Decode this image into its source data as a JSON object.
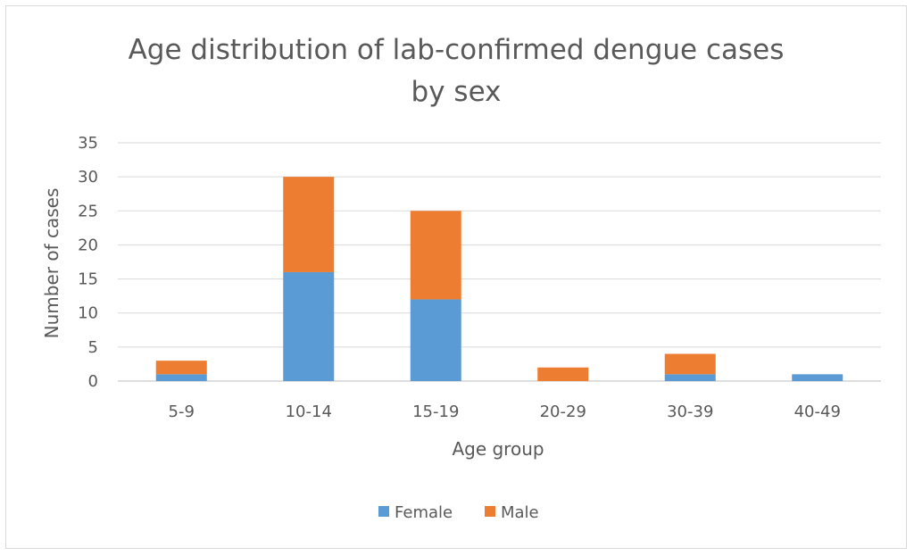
{
  "chart_data": {
    "type": "bar",
    "stacked": true,
    "title_lines": [
      "Age distribution of lab-confirmed dengue cases",
      "by sex"
    ],
    "xlabel": "Age group",
    "ylabel": "Number of cases",
    "categories": [
      "5-9",
      "10-14",
      "15-19",
      "20-29",
      "30-39",
      "40-49"
    ],
    "series": [
      {
        "name": "Female",
        "color": "#5b9bd5",
        "values": [
          1,
          16,
          12,
          0,
          1,
          1
        ]
      },
      {
        "name": "Male",
        "color": "#ed7d31",
        "values": [
          2,
          14,
          13,
          2,
          3,
          0
        ]
      }
    ],
    "ylim": [
      0,
      35
    ],
    "yticks": [
      0,
      5,
      10,
      15,
      20,
      25,
      30,
      35
    ],
    "grid": true,
    "legend_position": "bottom"
  }
}
